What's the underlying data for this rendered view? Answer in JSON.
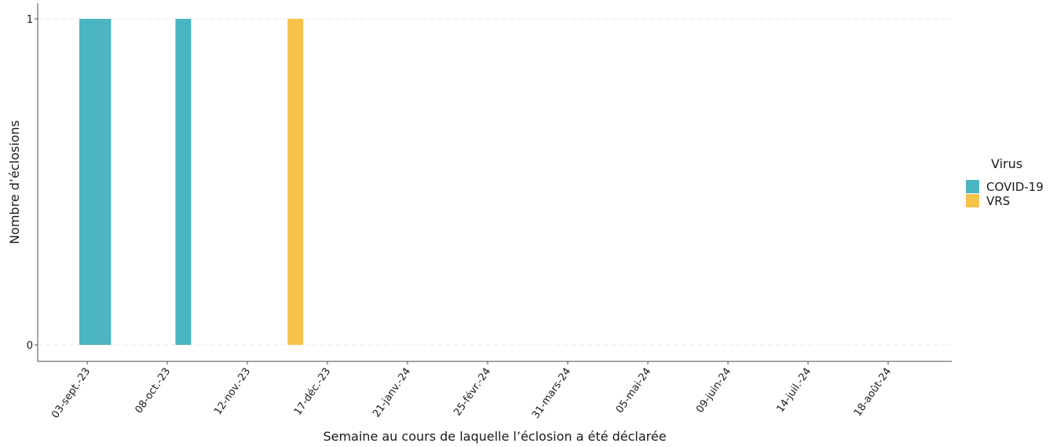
{
  "chart_data": {
    "type": "bar",
    "xlabel": "Semaine au cours de laquelle l’éclosion a été déclarée",
    "ylabel": "Nombre d’éclosions",
    "x_tick_labels": [
      "03-sept.-23",
      "08-oct.-23",
      "12-nov.-23",
      "17-déc.-23",
      "21-janv.-24",
      "25-févr.-24",
      "31-mars-24",
      "05-mai-24",
      "09-juin-24",
      "14-juil.-24",
      "18-août-24"
    ],
    "y_tick_labels": [
      "0",
      "1"
    ],
    "ylim": [
      0,
      1
    ],
    "grid": "horizontal dashed",
    "legend": {
      "title": "Virus",
      "position": "right"
    },
    "series": [
      {
        "name": "COVID-19",
        "color": "#4BB5C1",
        "points": [
          {
            "weeks": [
              "03-sept.-23",
              "10-sept.-23"
            ],
            "value": 1
          },
          {
            "weeks": [
              "15-oct.-23"
            ],
            "value": 1
          }
        ]
      },
      {
        "name": "VRS",
        "color": "#F5C24B",
        "points": [
          {
            "weeks": [
              "03-déc.-23"
            ],
            "value": 1
          }
        ]
      }
    ]
  }
}
